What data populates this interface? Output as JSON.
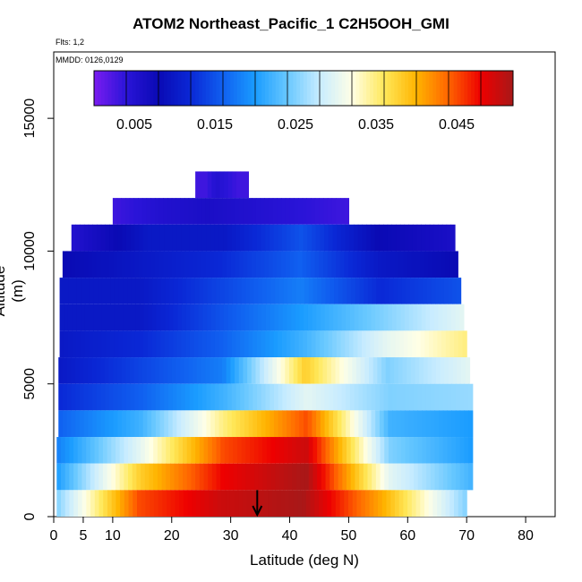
{
  "header": {
    "title": "ATOM2 Northeast_Pacific_1 C2H5OOH_GMI",
    "flights_text": "Flts: 1,2",
    "mmdd_text": "MMDD: 0126,0129"
  },
  "colors": {
    "scale": [
      "#7a1cf0",
      "#2a14d8",
      "#0a0ab4",
      "#0a28d6",
      "#1060f0",
      "#1a9cff",
      "#68c8ff",
      "#c8ecff",
      "#ffffe6",
      "#ffe85a",
      "#ffb400",
      "#ff6400",
      "#ee0000",
      "#a81818"
    ]
  },
  "chart_data": {
    "type": "heatmap",
    "title": "ATOM2 Northeast_Pacific_1 C2H5OOH_GMI",
    "xlabel": "Latitude (deg N)",
    "ylabel": "Altitude (m)",
    "xlim": [
      0,
      85
    ],
    "ylim": [
      0,
      17500
    ],
    "x_ticks": [
      0,
      5,
      10,
      20,
      30,
      40,
      50,
      60,
      70,
      80
    ],
    "y_ticks": [
      0,
      5000,
      10000,
      15000
    ],
    "colorbar": {
      "range": [
        0,
        0.052
      ],
      "tick_values": [
        0.005,
        0.015,
        0.025,
        0.035,
        0.045
      ],
      "tick_labels": [
        "0.005",
        "0.015",
        "0.025",
        "0.035",
        "0.045"
      ]
    },
    "marker_arrow_latitude": 34.5,
    "grid": false,
    "altitude_bands_m": [
      12500,
      11500,
      10500,
      9500,
      8500,
      7500,
      6500,
      5500,
      4500,
      3500,
      2500,
      1500,
      500
    ],
    "band_lat_ranges": [
      [
        24,
        33
      ],
      [
        10,
        50
      ],
      [
        3,
        68
      ],
      [
        1.5,
        68.5
      ],
      [
        1,
        69
      ],
      [
        1,
        69.5
      ],
      [
        1,
        70
      ],
      [
        0.8,
        70.5
      ],
      [
        0.8,
        71
      ],
      [
        0.8,
        71
      ],
      [
        0.5,
        71
      ],
      [
        0.5,
        71
      ],
      [
        0.5,
        70
      ]
    ],
    "profile_points": [
      [
        0.003,
        0.003,
        0.005,
        0.004,
        0.003,
        0.003
      ],
      [
        0.003,
        0.005,
        0.006,
        0.005,
        0.004,
        0.003
      ],
      [
        0.005,
        0.01,
        0.01,
        0.015,
        0.008,
        0.006
      ],
      [
        0.008,
        0.01,
        0.012,
        0.016,
        0.01,
        0.008
      ],
      [
        0.01,
        0.01,
        0.014,
        0.018,
        0.012,
        0.015
      ],
      [
        0.01,
        0.01,
        0.015,
        0.02,
        0.025,
        0.03
      ],
      [
        0.01,
        0.012,
        0.016,
        0.022,
        0.03,
        0.035
      ],
      [
        0.01,
        0.014,
        0.018,
        0.038,
        0.025,
        0.03
      ],
      [
        0.012,
        0.016,
        0.022,
        0.03,
        0.025,
        0.026
      ],
      [
        0.016,
        0.022,
        0.035,
        0.045,
        0.022,
        0.02
      ],
      [
        0.018,
        0.03,
        0.045,
        0.05,
        0.025,
        0.02
      ],
      [
        0.02,
        0.038,
        0.048,
        0.052,
        0.03,
        0.022
      ],
      [
        0.025,
        0.045,
        0.05,
        0.052,
        0.04,
        0.025
      ]
    ]
  }
}
